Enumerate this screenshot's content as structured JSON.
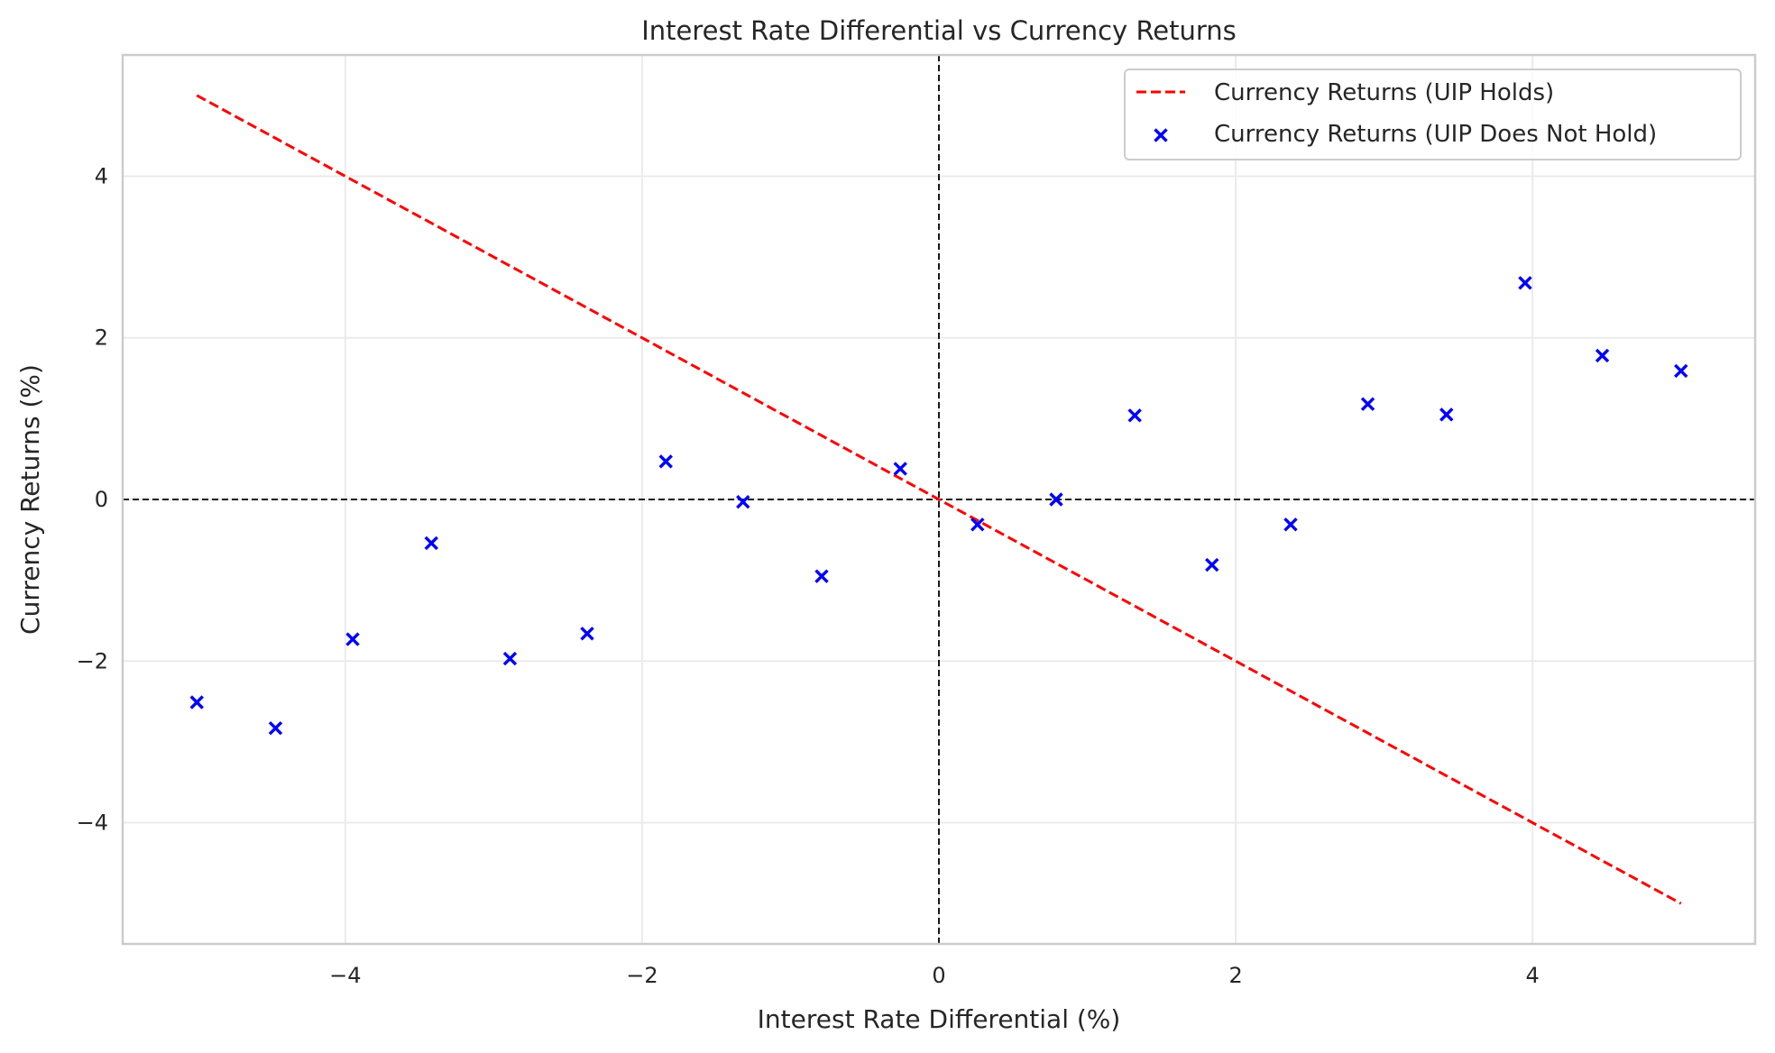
{
  "chart_data": {
    "type": "scatter",
    "title": "Interest Rate Differential vs Currency Returns",
    "xlabel": "Interest Rate Differential (%)",
    "ylabel": "Currency Returns (%)",
    "xlim": [
      -5.5,
      5.5
    ],
    "ylim": [
      -5.5,
      5.5
    ],
    "xticks": [
      -4,
      -2,
      0,
      2,
      4
    ],
    "yticks": [
      -4,
      -2,
      0,
      2,
      4
    ],
    "xtick_labels": [
      "−4",
      "−2",
      "0",
      "2",
      "4"
    ],
    "ytick_labels": [
      "−4",
      "−2",
      "0",
      "2",
      "4"
    ],
    "grid": true,
    "legend_position": "top-right",
    "reference_lines": {
      "x": 0,
      "y": 0,
      "color": "#000000",
      "style": "dashed"
    },
    "series": [
      {
        "name": "Currency Returns (UIP Holds)",
        "kind": "line",
        "style": "dashed",
        "color": "#ff0000",
        "x": [
          -5,
          5
        ],
        "y": [
          5,
          -5
        ]
      },
      {
        "name": "Currency Returns (UIP Does Not Hold)",
        "kind": "scatter",
        "marker": "x",
        "color": "#0000ff",
        "x": [
          -5.0,
          -4.47,
          -3.95,
          -3.42,
          -2.89,
          -2.37,
          -1.84,
          -1.32,
          -0.79,
          -0.26,
          0.26,
          0.79,
          1.32,
          1.84,
          2.37,
          2.89,
          3.42,
          3.95,
          4.47,
          5.0
        ],
        "y": [
          -2.51,
          -2.83,
          -1.73,
          -0.54,
          -1.97,
          -1.66,
          0.47,
          -0.03,
          -0.95,
          0.38,
          -0.31,
          0.0,
          1.04,
          -0.81,
          -0.31,
          1.18,
          1.05,
          2.68,
          1.78,
          1.59
        ]
      }
    ]
  }
}
